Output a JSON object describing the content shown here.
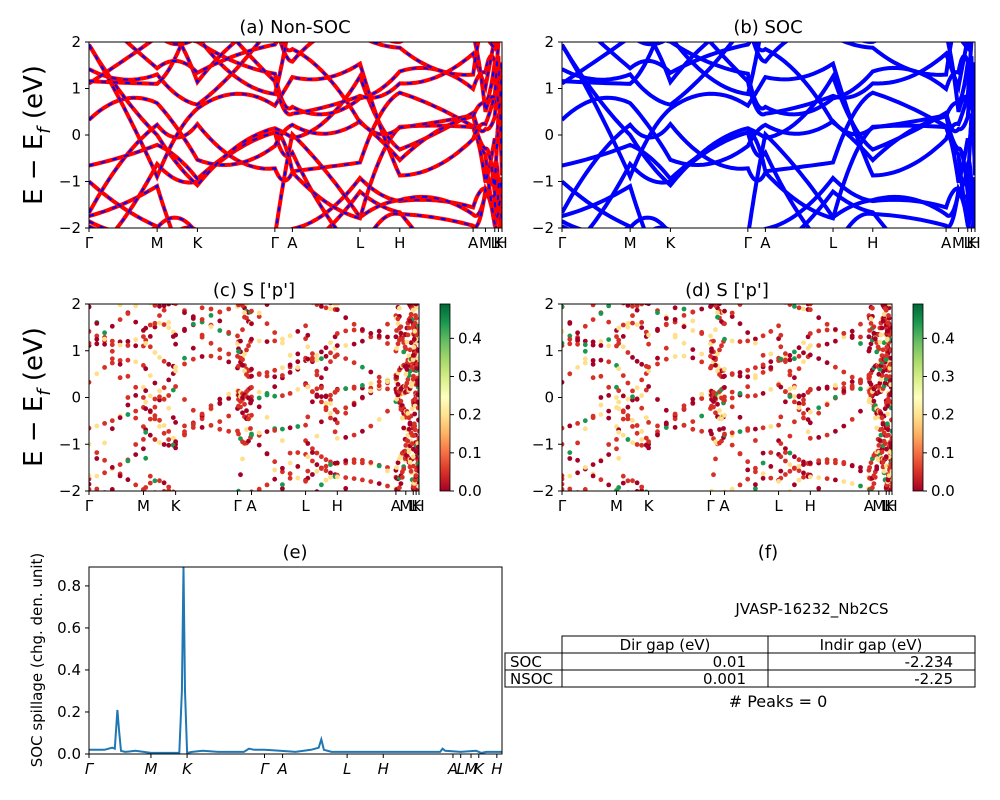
{
  "figure": {
    "ylabel_band": "E − E_f (eV)",
    "ylabel_main": "E − E",
    "ylabel_sub": "f",
    "ylabel_unit": "(eV)"
  },
  "colors": {
    "nonsoc_up": "#ff0000",
    "nonsoc_dn": "#0000ff",
    "soc": "#0000ff",
    "spillage": "#1f77b4",
    "cmap": [
      "#a50026",
      "#d73027",
      "#f46d43",
      "#fdae61",
      "#fee08b",
      "#ffffbf",
      "#d9ef8b",
      "#a6d96a",
      "#66bd63",
      "#1a9850",
      "#006837"
    ]
  },
  "chart_data": [
    {
      "id": "a",
      "type": "line",
      "title": "(a) Non-SOC",
      "ylim": [
        -2,
        2
      ],
      "yticks": [
        "2",
        "1",
        "0",
        "−1",
        "−2"
      ],
      "xlim": [
        0,
        8.0
      ],
      "kpoints": [
        {
          "label": "Γ",
          "x": 0
        },
        {
          "label": "M",
          "x": 1.32
        },
        {
          "label": "K",
          "x": 2.1
        },
        {
          "label": "Γ",
          "x": 3.6
        },
        {
          "label": "A",
          "x": 3.94
        },
        {
          "label": "L",
          "x": 5.25
        },
        {
          "label": "H",
          "x": 6.02
        },
        {
          "label": "A",
          "x": 7.44
        },
        {
          "label": "M",
          "x": 7.68
        },
        {
          "label": "L",
          "x": 7.86
        },
        {
          "label": "K",
          "x": 7.93
        },
        {
          "label": "H",
          "x": 8.0
        }
      ],
      "series_note": "spin-up (red) overlaid with dashed spin-down (blue)"
    },
    {
      "id": "b",
      "type": "line",
      "title": "(b) SOC",
      "ylim": [
        -2,
        2
      ],
      "yticks": [
        "2",
        "1",
        "0",
        "−1",
        "−2"
      ],
      "xlim": [
        0,
        8.0
      ],
      "kpoints": [
        {
          "label": "Γ",
          "x": 0
        },
        {
          "label": "M",
          "x": 1.32
        },
        {
          "label": "K",
          "x": 2.1
        },
        {
          "label": "Γ",
          "x": 3.6
        },
        {
          "label": "A",
          "x": 3.94
        },
        {
          "label": "L",
          "x": 5.25
        },
        {
          "label": "H",
          "x": 6.02
        },
        {
          "label": "A",
          "x": 7.44
        },
        {
          "label": "M",
          "x": 7.68
        },
        {
          "label": "L",
          "x": 7.86
        },
        {
          "label": "K",
          "x": 7.93
        },
        {
          "label": "H",
          "x": 8.0
        }
      ]
    },
    {
      "id": "c",
      "type": "scatter",
      "title": "(c)  S ['p']",
      "ylim": [
        -2,
        2
      ],
      "yticks": [
        "2",
        "1",
        "0",
        "−1",
        "−2"
      ],
      "xlim": [
        0,
        8.0
      ],
      "colorbar": {
        "range": [
          0.0,
          0.49
        ],
        "ticks": [
          "0.4",
          "0.3",
          "0.2",
          "0.1",
          "0.0"
        ]
      },
      "kpoints": [
        {
          "label": "Γ",
          "x": 0
        },
        {
          "label": "M",
          "x": 1.32
        },
        {
          "label": "K",
          "x": 2.1
        },
        {
          "label": "Γ",
          "x": 3.6
        },
        {
          "label": "A",
          "x": 3.94
        },
        {
          "label": "L",
          "x": 5.25
        },
        {
          "label": "H",
          "x": 6.02
        },
        {
          "label": "A",
          "x": 7.44
        },
        {
          "label": "M",
          "x": 7.68
        },
        {
          "label": "L",
          "x": 7.86
        },
        {
          "label": "K",
          "x": 7.93
        },
        {
          "label": "H",
          "x": 8.0
        }
      ]
    },
    {
      "id": "d",
      "type": "scatter",
      "title": "(d) S ['p']",
      "ylim": [
        -2,
        2
      ],
      "yticks": [
        "2",
        "1",
        "0",
        "−1",
        "−2"
      ],
      "xlim": [
        0,
        8.0
      ],
      "colorbar": {
        "range": [
          0.0,
          0.49
        ],
        "ticks": [
          "0.4",
          "0.3",
          "0.2",
          "0.1",
          "0.0"
        ]
      },
      "kpoints": [
        {
          "label": "Γ",
          "x": 0
        },
        {
          "label": "M",
          "x": 1.32
        },
        {
          "label": "K",
          "x": 2.1
        },
        {
          "label": "Γ",
          "x": 3.6
        },
        {
          "label": "A",
          "x": 3.94
        },
        {
          "label": "L",
          "x": 5.25
        },
        {
          "label": "H",
          "x": 6.02
        },
        {
          "label": "A",
          "x": 7.44
        },
        {
          "label": "M",
          "x": 7.68
        },
        {
          "label": "L",
          "x": 7.86
        },
        {
          "label": "K",
          "x": 7.93
        },
        {
          "label": "H",
          "x": 8.0
        }
      ]
    },
    {
      "id": "e",
      "type": "line",
      "title": "(e)",
      "ylabel": "SOC spillage (chg. den. unit)",
      "xlim": [
        0,
        8.0
      ],
      "ylim": [
        0,
        0.89
      ],
      "yticks": [
        {
          "label": "0.0",
          "v": 0.0
        },
        {
          "label": "0.2",
          "v": 0.2
        },
        {
          "label": "0.4",
          "v": 0.4
        },
        {
          "label": "0.6",
          "v": 0.6
        },
        {
          "label": "0.8",
          "v": 0.8
        }
      ],
      "kpoints": [
        {
          "label": "Γ",
          "x": 0
        },
        {
          "label": "M",
          "x": 1.2
        },
        {
          "label": "K",
          "x": 1.9
        },
        {
          "label": "Γ",
          "x": 3.4
        },
        {
          "label": "A",
          "x": 3.75
        },
        {
          "label": "L",
          "x": 5.0
        },
        {
          "label": "H",
          "x": 5.7
        },
        {
          "label": "A",
          "x": 7.05
        },
        {
          "label": "L",
          "x": 7.2
        },
        {
          "label": "M",
          "x": 7.4
        },
        {
          "label": "K",
          "x": 7.55
        },
        {
          "label": "H",
          "x": 7.9
        }
      ],
      "x": [
        0,
        0.3,
        0.45,
        0.5,
        0.55,
        0.58,
        0.62,
        0.7,
        0.9,
        1.2,
        1.5,
        1.75,
        1.8,
        1.83,
        1.86,
        1.9,
        2.0,
        2.2,
        2.5,
        2.8,
        3.0,
        3.1,
        3.2,
        3.4,
        3.7,
        4.0,
        4.3,
        4.45,
        4.5,
        4.55,
        4.7,
        5.0,
        5.5,
        6.0,
        6.5,
        6.8,
        6.85,
        6.9,
        7.2,
        7.5,
        7.6,
        7.7,
        8.0
      ],
      "values": [
        0.02,
        0.02,
        0.03,
        0.025,
        0.21,
        0.12,
        0.015,
        0.01,
        0.015,
        0.005,
        0.005,
        0.005,
        0.3,
        0.89,
        0.3,
        0.005,
        0.01,
        0.015,
        0.01,
        0.01,
        0.01,
        0.025,
        0.02,
        0.02,
        0.015,
        0.01,
        0.02,
        0.03,
        0.07,
        0.02,
        0.01,
        0.01,
        0.01,
        0.01,
        0.01,
        0.01,
        0.025,
        0.015,
        0.01,
        0.015,
        0.005,
        0.01,
        0.01
      ]
    }
  ],
  "panel_f": {
    "title": "(f)",
    "material": "JVASP-16232_Nb2CS",
    "table": {
      "columns": [
        "Dir gap (eV)",
        "Indir gap (eV)"
      ],
      "rows": [
        {
          "label": "SOC",
          "dir": "0.01",
          "indir": "-2.234"
        },
        {
          "label": "NSOC",
          "dir": "0.001",
          "indir": "-2.25"
        }
      ]
    },
    "peaks_text": "# Peaks = 0"
  }
}
